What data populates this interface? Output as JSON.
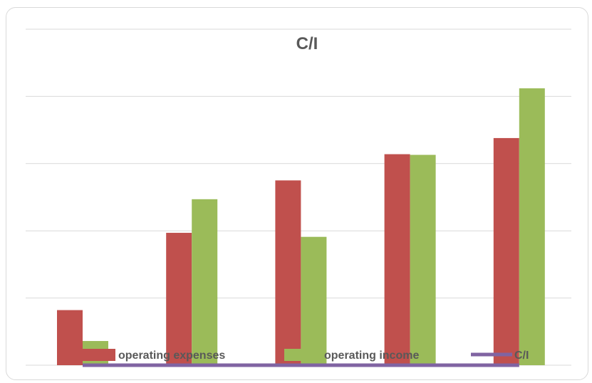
{
  "chart_data": {
    "type": "bar",
    "title": "C/I",
    "xlabel": "",
    "ylabel": "",
    "categories": [
      "",
      "",
      "",
      "",
      ""
    ],
    "ylim": [
      0,
      5
    ],
    "grid": true,
    "legend_position": "bottom",
    "series": [
      {
        "name": "operating expenses",
        "type": "bar",
        "color": "#c0504d",
        "values": [
          0.82,
          1.97,
          2.75,
          3.14,
          3.38
        ]
      },
      {
        "name": "operating income",
        "type": "bar",
        "color": "#9bbb59",
        "values": [
          0.36,
          2.47,
          1.91,
          3.13,
          4.12
        ]
      },
      {
        "name": "C/I",
        "type": "line",
        "color": "#8064a2",
        "values": [
          0,
          0,
          0,
          0,
          0
        ]
      }
    ]
  }
}
